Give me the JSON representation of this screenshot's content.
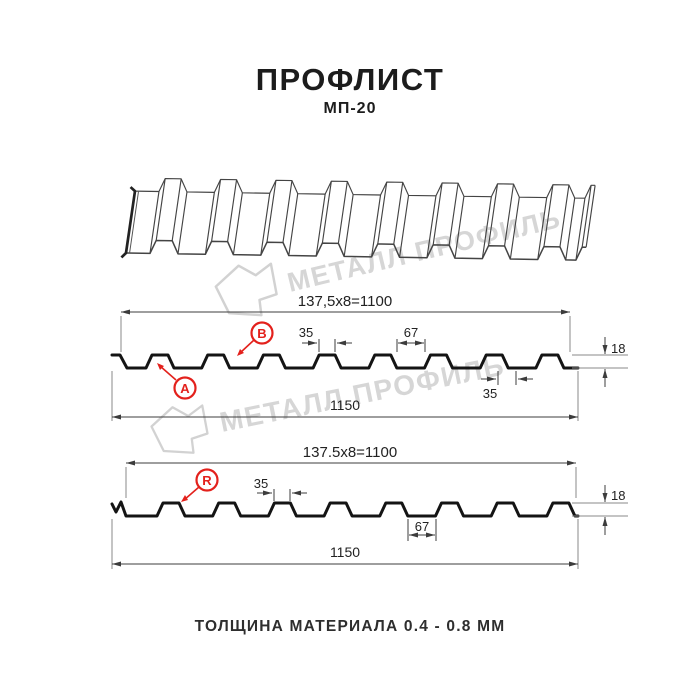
{
  "header": {
    "title": "ПРОФЛИСТ",
    "subtitle": "МП-20"
  },
  "watermark": {
    "brand": "МЕТАЛЛ ПРОФИЛЬ"
  },
  "footer": {
    "thickness_note": "ТОЛЩИНА МАТЕРИАЛА 0.4 - 0.8 ММ"
  },
  "colors": {
    "accent_red": "#e3211c",
    "line_black": "#141414",
    "dim_gray": "#3c3c3c",
    "watermark_gray": "#d6d6d6"
  },
  "profile_front": {
    "label_a": "A",
    "label_b": "B",
    "dim_useful_width": "137,5x8=1100",
    "dim_rib_top": "35",
    "dim_trough": "67",
    "dim_height": "18",
    "dim_bottom": "35",
    "dim_full_width": "1150"
  },
  "profile_reverse": {
    "label_r": "R",
    "dim_useful_width": "137.5x8=1100",
    "dim_rib_top": "35",
    "dim_trough": "67",
    "dim_height": "18",
    "dim_full_width": "1150"
  }
}
